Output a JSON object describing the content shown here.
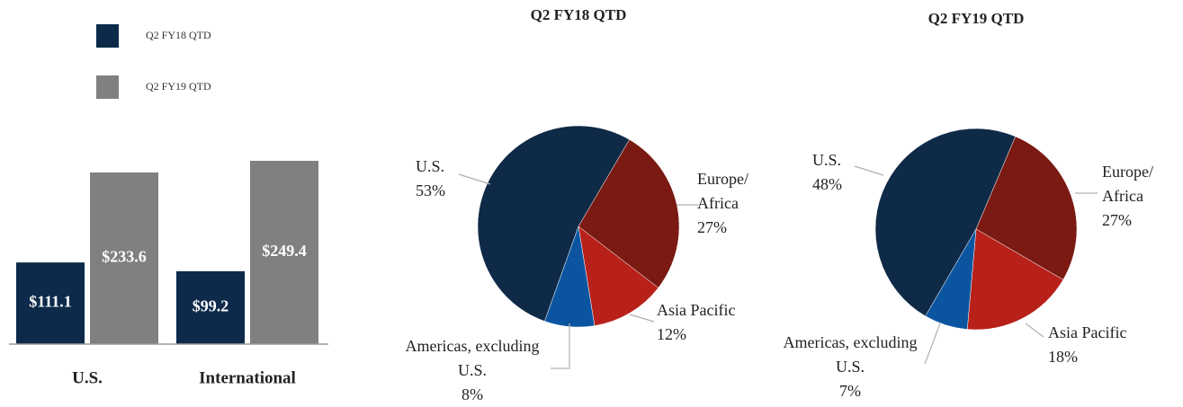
{
  "chart_data": [
    {
      "type": "bar",
      "categories": [
        "U.S.",
        "International"
      ],
      "series": [
        {
          "name": "Q2 FY18 QTD",
          "color": "#0d2a4a",
          "values": [
            111.1,
            99.2
          ],
          "value_labels": [
            "$111.1",
            "$99.2"
          ]
        },
        {
          "name": "Q2 FY19 QTD",
          "color": "#808080",
          "values": [
            233.6,
            249.4
          ],
          "value_labels": [
            "$233.6",
            "$249.4"
          ]
        }
      ]
    },
    {
      "type": "pie",
      "title": "Q2 FY18 QTD",
      "categories": [
        "U.S.",
        "Europe/ Africa",
        "Asia Pacific",
        "Americas, excluding U.S."
      ],
      "values": [
        53,
        27,
        12,
        8
      ],
      "value_labels": [
        "53%",
        "27%",
        "12%",
        "8%"
      ],
      "colors": [
        "#0f2a47",
        "#7a1a12",
        "#b8201a",
        "#0b55a0"
      ]
    },
    {
      "type": "pie",
      "title": "Q2 FY19 QTD",
      "categories": [
        "U.S.",
        "Europe/ Africa",
        "Asia Pacific",
        "Americas, excluding U.S."
      ],
      "values": [
        48,
        27,
        18,
        7
      ],
      "value_labels": [
        "48%",
        "27%",
        "18%",
        "7%"
      ],
      "colors": [
        "#0f2a47",
        "#7a1a12",
        "#b8201a",
        "#0b55a0"
      ]
    }
  ]
}
